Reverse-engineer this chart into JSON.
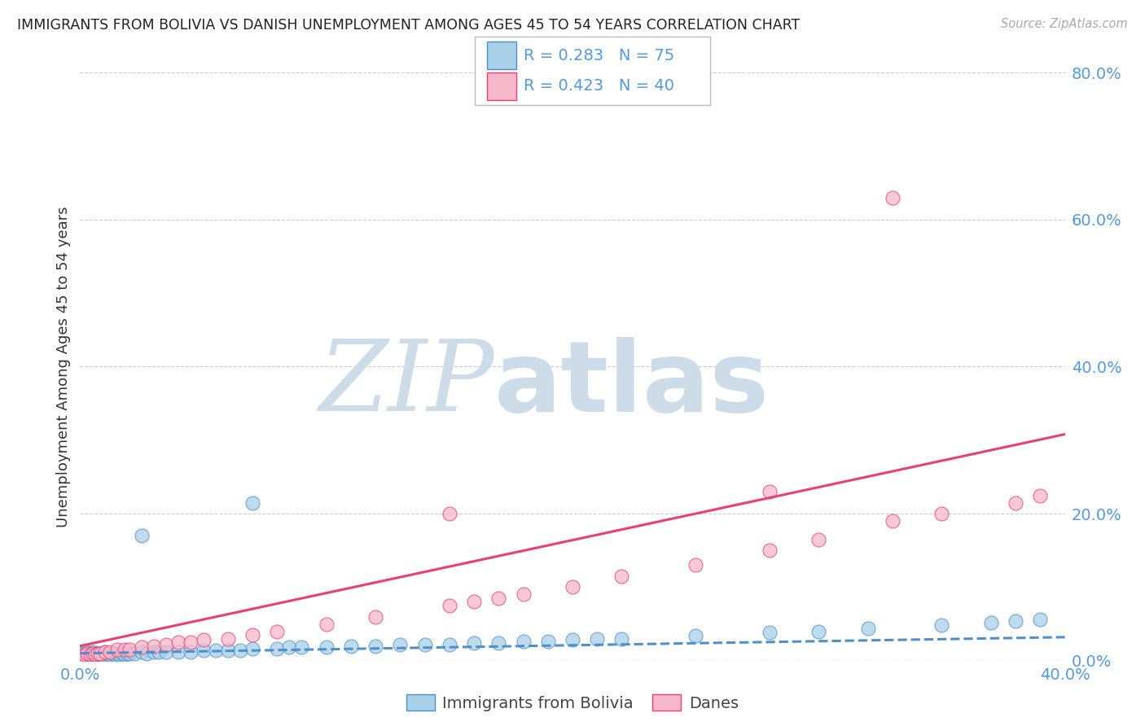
{
  "title": "IMMIGRANTS FROM BOLIVIA VS DANISH UNEMPLOYMENT AMONG AGES 45 TO 54 YEARS CORRELATION CHART",
  "source": "Source: ZipAtlas.com",
  "ylabel": "Unemployment Among Ages 45 to 54 years",
  "xlim": [
    0.0,
    0.4
  ],
  "ylim": [
    0.0,
    0.8
  ],
  "yticks": [
    0.0,
    0.2,
    0.4,
    0.6,
    0.8
  ],
  "ytick_labels": [
    "0.0%",
    "20.0%",
    "40.0%",
    "60.0%",
    "80.0%"
  ],
  "xtick_labels": [
    "0.0%",
    "40.0%"
  ],
  "legend_r1": "R = 0.283",
  "legend_n1": "N = 75",
  "legend_r2": "R = 0.423",
  "legend_n2": "N = 40",
  "legend_label1": "Immigrants from Bolivia",
  "legend_label2": "Danes",
  "blue_face": "#a8d0e8",
  "blue_edge": "#5090c8",
  "pink_face": "#f8b8cc",
  "pink_edge": "#e84070",
  "blue_line": "#5090c8",
  "pink_line": "#e84070",
  "rn_color": "#5599dd",
  "tick_color": "#5599dd",
  "grid_color": "#cccccc",
  "title_color": "#222222",
  "ylabel_color": "#333333",
  "source_color": "#aaaaaa",
  "wm_color": "#ccdce8",
  "blue_trend_a": 0.01,
  "blue_trend_b": 0.055,
  "pink_trend_a": 0.02,
  "pink_trend_b": 0.72,
  "blue_x": [
    0.001,
    0.001,
    0.001,
    0.002,
    0.002,
    0.002,
    0.002,
    0.003,
    0.003,
    0.003,
    0.004,
    0.004,
    0.004,
    0.005,
    0.005,
    0.005,
    0.006,
    0.006,
    0.007,
    0.007,
    0.008,
    0.008,
    0.009,
    0.009,
    0.01,
    0.01,
    0.011,
    0.012,
    0.013,
    0.014,
    0.015,
    0.016,
    0.017,
    0.018,
    0.019,
    0.02,
    0.022,
    0.025,
    0.027,
    0.03,
    0.032,
    0.035,
    0.04,
    0.045,
    0.05,
    0.055,
    0.06,
    0.065,
    0.07,
    0.08,
    0.085,
    0.09,
    0.1,
    0.11,
    0.12,
    0.13,
    0.14,
    0.15,
    0.16,
    0.17,
    0.18,
    0.19,
    0.2,
    0.21,
    0.22,
    0.25,
    0.28,
    0.3,
    0.32,
    0.35,
    0.37,
    0.38,
    0.39,
    0.07,
    0.025
  ],
  "blue_y": [
    0.005,
    0.008,
    0.01,
    0.005,
    0.008,
    0.01,
    0.012,
    0.005,
    0.008,
    0.012,
    0.005,
    0.008,
    0.01,
    0.005,
    0.008,
    0.012,
    0.006,
    0.01,
    0.006,
    0.01,
    0.006,
    0.01,
    0.006,
    0.01,
    0.008,
    0.012,
    0.01,
    0.008,
    0.01,
    0.008,
    0.01,
    0.008,
    0.01,
    0.008,
    0.01,
    0.01,
    0.01,
    0.012,
    0.01,
    0.012,
    0.012,
    0.012,
    0.012,
    0.012,
    0.014,
    0.014,
    0.014,
    0.014,
    0.016,
    0.016,
    0.018,
    0.018,
    0.018,
    0.02,
    0.02,
    0.022,
    0.022,
    0.022,
    0.024,
    0.024,
    0.026,
    0.026,
    0.028,
    0.03,
    0.03,
    0.034,
    0.038,
    0.04,
    0.044,
    0.048,
    0.052,
    0.054,
    0.056,
    0.215,
    0.17
  ],
  "pink_x": [
    0.001,
    0.002,
    0.003,
    0.004,
    0.005,
    0.006,
    0.007,
    0.008,
    0.01,
    0.012,
    0.015,
    0.018,
    0.02,
    0.025,
    0.03,
    0.035,
    0.04,
    0.045,
    0.05,
    0.06,
    0.07,
    0.08,
    0.1,
    0.12,
    0.15,
    0.16,
    0.17,
    0.18,
    0.2,
    0.22,
    0.25,
    0.28,
    0.3,
    0.33,
    0.35,
    0.38,
    0.39,
    0.15,
    0.28,
    0.33
  ],
  "pink_y": [
    0.005,
    0.008,
    0.01,
    0.008,
    0.01,
    0.008,
    0.01,
    0.01,
    0.012,
    0.012,
    0.015,
    0.015,
    0.015,
    0.018,
    0.02,
    0.022,
    0.025,
    0.025,
    0.028,
    0.03,
    0.035,
    0.04,
    0.05,
    0.06,
    0.075,
    0.08,
    0.085,
    0.09,
    0.1,
    0.115,
    0.13,
    0.15,
    0.165,
    0.19,
    0.2,
    0.215,
    0.225,
    0.2,
    0.23,
    0.63
  ]
}
